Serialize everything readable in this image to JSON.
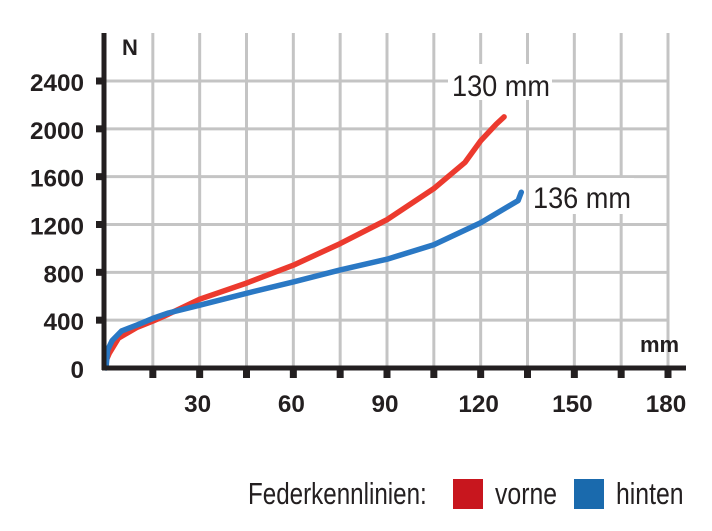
{
  "chart_data": {
    "type": "line",
    "title": "",
    "xlabel": "mm",
    "ylabel": "N",
    "xlim": [
      0,
      180
    ],
    "ylim": [
      0,
      2400
    ],
    "x_ticks": [
      30,
      60,
      90,
      120,
      150,
      180
    ],
    "x_minor_ticks": [
      15,
      45,
      75,
      105,
      135,
      165
    ],
    "y_ticks": [
      0,
      400,
      800,
      1200,
      1600,
      2000,
      2400
    ],
    "grid": true,
    "legend_position": "bottom-right",
    "legend_title": "Federkennlinien:",
    "series": [
      {
        "name": "vorne",
        "color": "#ec3a2e",
        "legend_color": "#c8161e",
        "end_annotation": "130 mm",
        "points": [
          [
            0,
            60
          ],
          [
            1,
            120
          ],
          [
            4,
            250
          ],
          [
            10,
            340
          ],
          [
            15,
            392
          ],
          [
            20,
            450
          ],
          [
            30,
            575
          ],
          [
            45,
            710
          ],
          [
            60,
            860
          ],
          [
            75,
            1040
          ],
          [
            90,
            1240
          ],
          [
            105,
            1500
          ],
          [
            115,
            1720
          ],
          [
            120,
            1900
          ],
          [
            125,
            2040
          ],
          [
            127.5,
            2100
          ]
        ]
      },
      {
        "name": "hinten",
        "color": "#2a78c4",
        "legend_color": "#1a6aad",
        "end_annotation": "136 mm",
        "points": [
          [
            0,
            0
          ],
          [
            0.5,
            150
          ],
          [
            2,
            230
          ],
          [
            5,
            310
          ],
          [
            10,
            360
          ],
          [
            15,
            415
          ],
          [
            20,
            460
          ],
          [
            30,
            525
          ],
          [
            45,
            625
          ],
          [
            60,
            720
          ],
          [
            75,
            820
          ],
          [
            90,
            910
          ],
          [
            105,
            1030
          ],
          [
            120,
            1215
          ],
          [
            130,
            1370
          ],
          [
            132,
            1400
          ],
          [
            133,
            1470
          ]
        ]
      }
    ]
  },
  "labels": {
    "y_unit": "N",
    "x_unit": "mm",
    "annotation_front": "130 mm",
    "annotation_rear": "136 mm"
  },
  "legend": {
    "title": "Federkennlinien:",
    "items": [
      {
        "label": "vorne",
        "color": "#c8161e"
      },
      {
        "label": "hinten",
        "color": "#1a6aad"
      }
    ]
  }
}
